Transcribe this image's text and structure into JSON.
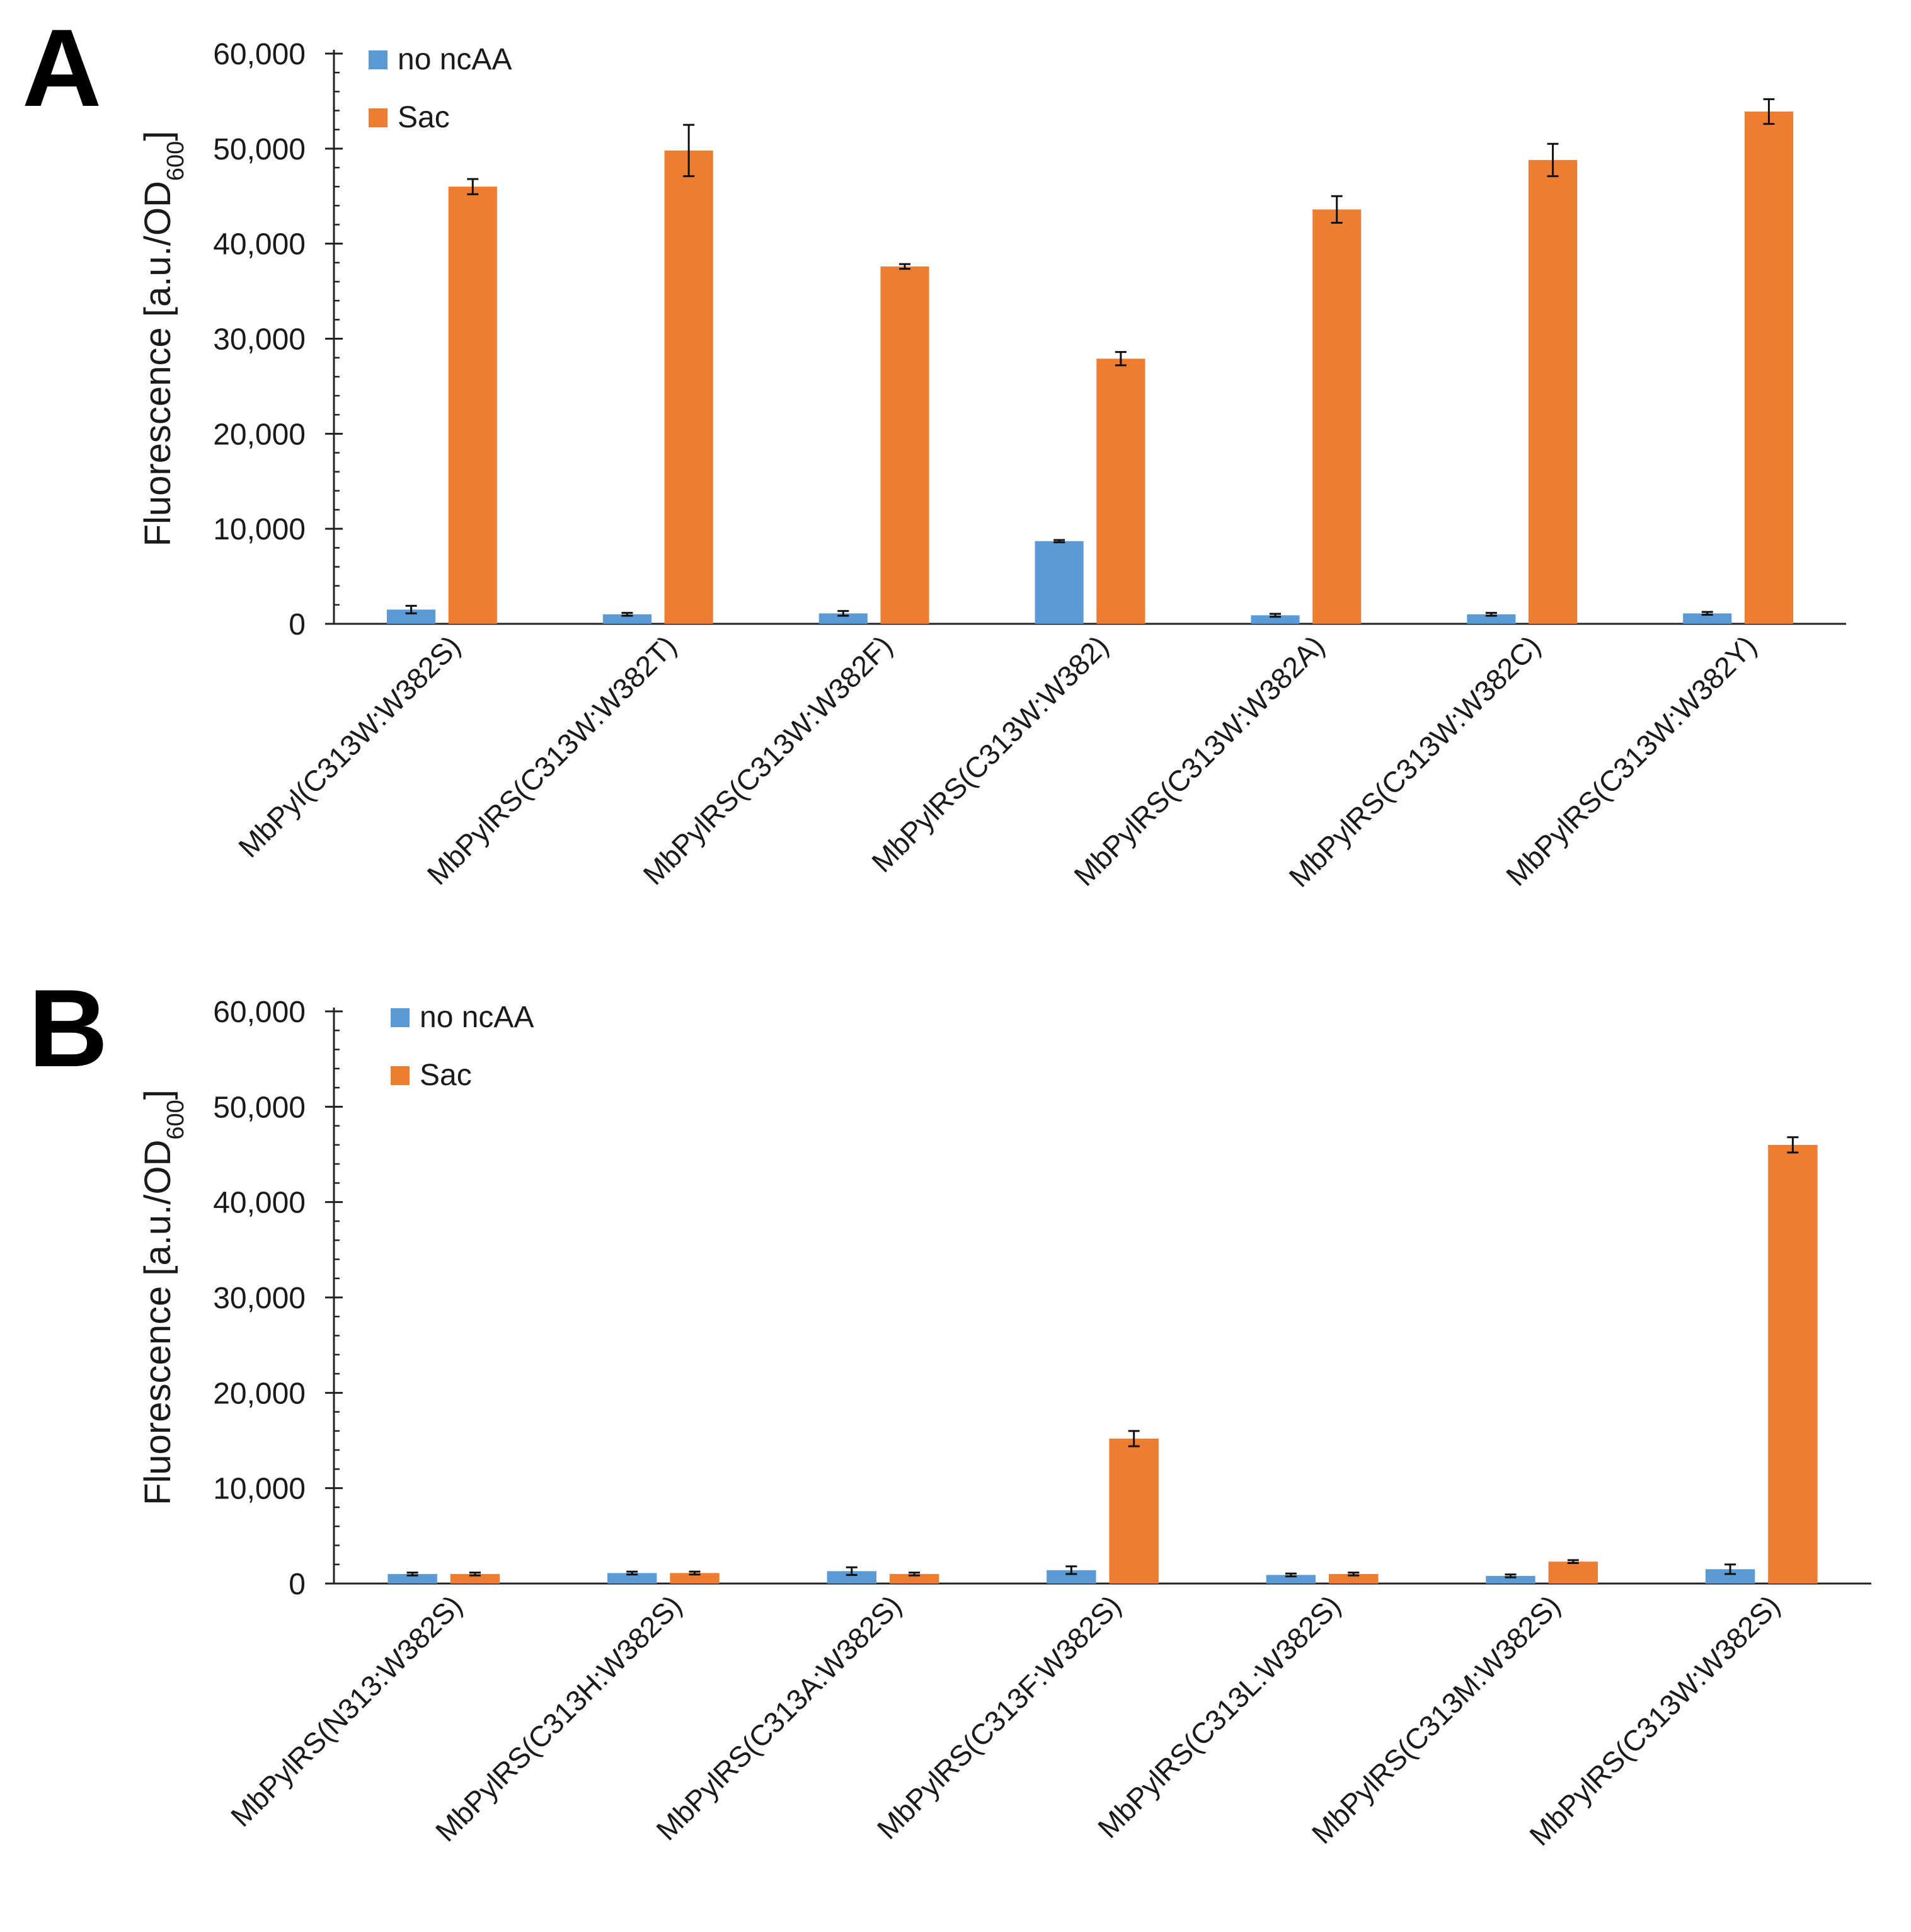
{
  "chart_data": [
    {
      "panel": "A",
      "type": "bar",
      "title": "",
      "xlabel": "",
      "ylabel": "Fluorescence [a.u./OD",
      "ylabel_sub": "600",
      "ylabel_end": "]",
      "ylim": [
        0,
        60000
      ],
      "yticks": [
        "0",
        "10,000",
        "20,000",
        "30,000",
        "40,000",
        "50,000",
        "60,000"
      ],
      "legend_position": "top-left",
      "categories": [
        "MbPyl(C313W:W382S)",
        "MbPylRS(C313W:W382T)",
        "MbPylRS(C313W:W382F)",
        "MbPylRS(C313W:W382)",
        "MbPylRS(C313W:W382A)",
        "MbPylRS(C313W:W382C)",
        "MbPylRS(C313W:W382Y)"
      ],
      "series": [
        {
          "name": "no ncAA",
          "color": "#5B9BD5",
          "values": [
            1500,
            1000,
            1100,
            8700,
            900,
            1000,
            1100
          ],
          "errors": [
            400,
            150,
            250,
            120,
            150,
            150,
            150
          ]
        },
        {
          "name": "Sac",
          "color": "#ED7D31",
          "values": [
            46000,
            49800,
            37600,
            27900,
            43600,
            48800,
            53900
          ],
          "errors": [
            800,
            2700,
            250,
            700,
            1400,
            1700,
            1300
          ]
        }
      ]
    },
    {
      "panel": "B",
      "type": "bar",
      "title": "",
      "xlabel": "",
      "ylabel": "Fluorescence [a.u./OD",
      "ylabel_sub": "600",
      "ylabel_end": "]",
      "ylim": [
        0,
        60000
      ],
      "yticks": [
        "0",
        "10,000",
        "20,000",
        "30,000",
        "40,000",
        "50,000",
        "60,000"
      ],
      "legend_position": "top-left",
      "categories": [
        "MbPylRS(N313:W382S)",
        "MbPylRS(C313H:W382S)",
        "MbPylRS(C313A:W382S)",
        "MbPylRS(C313F:W382S)",
        "MbPylRS(C313L:W382S)",
        "MbPylRS(C313M:W382S)",
        "MbPylRS(C313W:W382S)"
      ],
      "series": [
        {
          "name": "no ncAA",
          "color": "#5B9BD5",
          "values": [
            1000,
            1100,
            1300,
            1400,
            900,
            800,
            1500
          ],
          "errors": [
            150,
            150,
            400,
            400,
            150,
            150,
            500
          ]
        },
        {
          "name": "Sac",
          "color": "#ED7D31",
          "values": [
            1000,
            1100,
            1000,
            15200,
            1000,
            2300,
            46000
          ],
          "errors": [
            150,
            150,
            150,
            800,
            150,
            150,
            800
          ]
        }
      ]
    }
  ]
}
